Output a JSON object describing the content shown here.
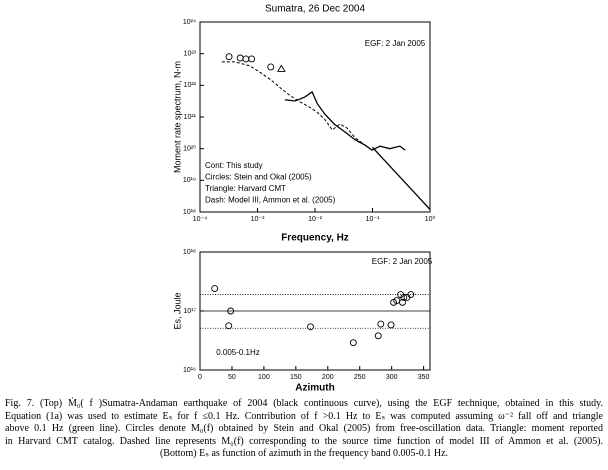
{
  "chart_data": [
    {
      "type": "line",
      "title": "Sumatra, 26 Dec 2004",
      "xlabel": "Frequency, Hz",
      "ylabel": "Moment rate spectrum, N-m",
      "xscale": "log",
      "yscale": "log",
      "xlim": [
        0.0001,
        1
      ],
      "ylim": [
        1e+18,
        1e+24
      ],
      "xticks": [
        {
          "value": 0.0001,
          "label": "10⁻⁴"
        },
        {
          "value": 0.001,
          "label": "10⁻³"
        },
        {
          "value": 0.01,
          "label": "10⁻²"
        },
        {
          "value": 0.1,
          "label": "10⁻¹"
        },
        {
          "value": 1,
          "label": "10⁰"
        }
      ],
      "yticks": [
        {
          "value": 1e+18,
          "label": "10¹⁸"
        },
        {
          "value": 1e+19,
          "label": "10¹⁹"
        },
        {
          "value": 1e+20,
          "label": "10²⁰"
        },
        {
          "value": 1e+21,
          "label": "10²¹"
        },
        {
          "value": 1e+22,
          "label": "10²²"
        },
        {
          "value": 1e+23,
          "label": "10²³"
        },
        {
          "value": 1e+24,
          "label": "10²⁴"
        }
      ],
      "annotations": [
        "EGF: 2 Jan 2005"
      ],
      "legend": [
        "Cont: This study",
        "Circles: Stein and Okal (2005)",
        "Triangle: Harvard CMT",
        "Dash: Model III, Ammon et al. (2005)"
      ],
      "series": [
        {
          "style": "solid",
          "color": "#000000",
          "x": [
            0.003,
            0.0045,
            0.0067,
            0.0089,
            0.011,
            0.015,
            0.022,
            0.033,
            0.05,
            0.074,
            0.098,
            0.135,
            0.2,
            0.3,
            0.37
          ],
          "values": [
            3.5e+21,
            3.2e+21,
            4.3e+21,
            6.2e+21,
            2.6e+21,
            1.2e+21,
            5.8e+20,
            3.4e+20,
            1.9e+20,
            1.3e+20,
            9e+19,
            1.2e+20,
            1e+20,
            1.2e+20,
            9e+19
          ]
        },
        {
          "style": "solid",
          "color": "#000000",
          "x": [
            0.1,
            1
          ],
          "values": [
            1.1e+20,
            1.2e+18
          ]
        },
        {
          "style": "dashed",
          "color": "#000000",
          "x": [
            0.00024,
            0.00041,
            0.00074,
            0.0011,
            0.0017,
            0.0025,
            0.0037,
            0.0055,
            0.0082,
            0.011,
            0.015,
            0.02,
            0.027,
            0.036,
            0.05,
            0.074,
            0.098
          ],
          "values": [
            5.5e+22,
            5.5e+22,
            4.1e+22,
            2.6e+22,
            1.5e+22,
            8.3e+21,
            4.7e+21,
            3e+21,
            2e+21,
            1.4e+21,
            8.1e+20,
            3.9e+20,
            6e+20,
            4.5e+20,
            2.2e+20,
            1.3e+20,
            9e+19
          ]
        },
        {
          "style": "circle",
          "color": "#000000",
          "x": [
            0.00032,
            0.0005,
            0.00063,
            0.00079,
            0.0017
          ],
          "values": [
            8e+22,
            7.3e+22,
            6.8e+22,
            6.8e+22,
            3.8e+22
          ]
        },
        {
          "style": "triangle",
          "color": "#000000",
          "x": [
            0.0026
          ],
          "values": [
            3.3e+22
          ]
        }
      ]
    },
    {
      "type": "scatter",
      "xlabel": "Azimuth",
      "ylabel": "Es, Joule",
      "xscale": "linear",
      "yscale": "log",
      "xlim": [
        0,
        360
      ],
      "ylim": [
        1e+16,
        1e+18
      ],
      "xticks": [
        0,
        50,
        100,
        150,
        200,
        250,
        300,
        350
      ],
      "yticks": [
        {
          "value": 1e+16,
          "label": "10¹⁶"
        },
        {
          "value": 1e+17,
          "label": "10¹⁷"
        },
        {
          "value": 1e+18,
          "label": "10¹⁸"
        }
      ],
      "annotations": [
        "EGF: 2 Jan 2005",
        "0.005-0.1Hz"
      ],
      "hlines": [
        {
          "value": 1.9e+17,
          "style": "dotted"
        },
        {
          "value": 1e+17,
          "style": "solid"
        },
        {
          "value": 5.1e+16,
          "style": "dotted"
        }
      ],
      "series": [
        {
          "style": "circle",
          "color": "#000000",
          "x": [
            23,
            48,
            45,
            173,
            240,
            279,
            283,
            299,
            303,
            308,
            314,
            317,
            319,
            324,
            330
          ],
          "values": [
            2.4e+17,
            1e+17,
            5.6e+16,
            5.4e+16,
            2.9e+16,
            3.8e+16,
            6e+16,
            5.8e+16,
            1.4e+17,
            1.5e+17,
            1.9e+17,
            1.4e+17,
            1.7e+17,
            1.7e+17,
            1.9e+17
          ]
        }
      ]
    }
  ],
  "caption": {
    "lines": [
      "Fig. 7. (Top) Ṁ₀( f )Sumatra-Andaman earthquake of 2004 (black continuous curve), using the EGF technique, obtained in this study.",
      "Equation (1a) was used to estimate Eₛ for f ≤0.1 Hz. Contribution of f >0.1 Hz to Eₛ was computed assuming ω⁻² fall off and triangle",
      "above 0.1 Hz (green line). Circles denote M₀(f) obtained by Stein and Okal (2005) from free-oscillation data. Triangle: moment reported",
      "in Harvard CMT catalog. Dashed line represents M₀(f) corresponding to the source time function of model III of Ammon et al. (2005).",
      "(Bottom) Eₛ as function of azimuth in the frequency band 0.005-0.1 Hz."
    ]
  }
}
